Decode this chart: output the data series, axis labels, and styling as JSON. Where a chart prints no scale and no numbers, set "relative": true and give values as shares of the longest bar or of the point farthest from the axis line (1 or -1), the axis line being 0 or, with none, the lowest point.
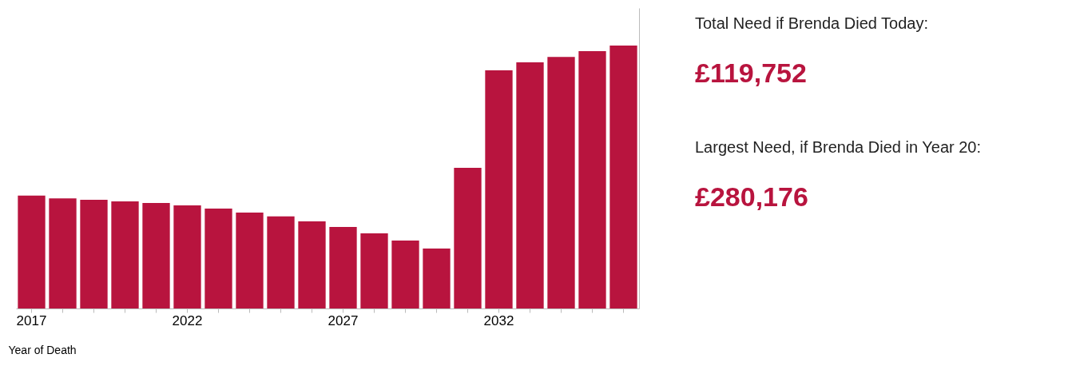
{
  "chart_data": {
    "type": "bar",
    "relative": true,
    "xlabel": "Year of Death",
    "color": "#b8143e",
    "categories": [
      "2017",
      null,
      null,
      null,
      null,
      "2022",
      null,
      null,
      null,
      null,
      "2027",
      null,
      null,
      null,
      null,
      "2032",
      null,
      null,
      null,
      null
    ],
    "values": [
      0.429,
      0.419,
      0.413,
      0.407,
      0.401,
      0.392,
      0.38,
      0.365,
      0.35,
      0.331,
      0.31,
      0.286,
      0.258,
      0.228,
      0.535,
      0.906,
      0.936,
      0.957,
      0.979,
      1.0
    ],
    "grid": false,
    "annotations": [
      "Total Need if Brenda Died Today:",
      "£119,752",
      "Largest Need, if Brenda Died in Year 20:",
      "£280,176"
    ]
  }
}
